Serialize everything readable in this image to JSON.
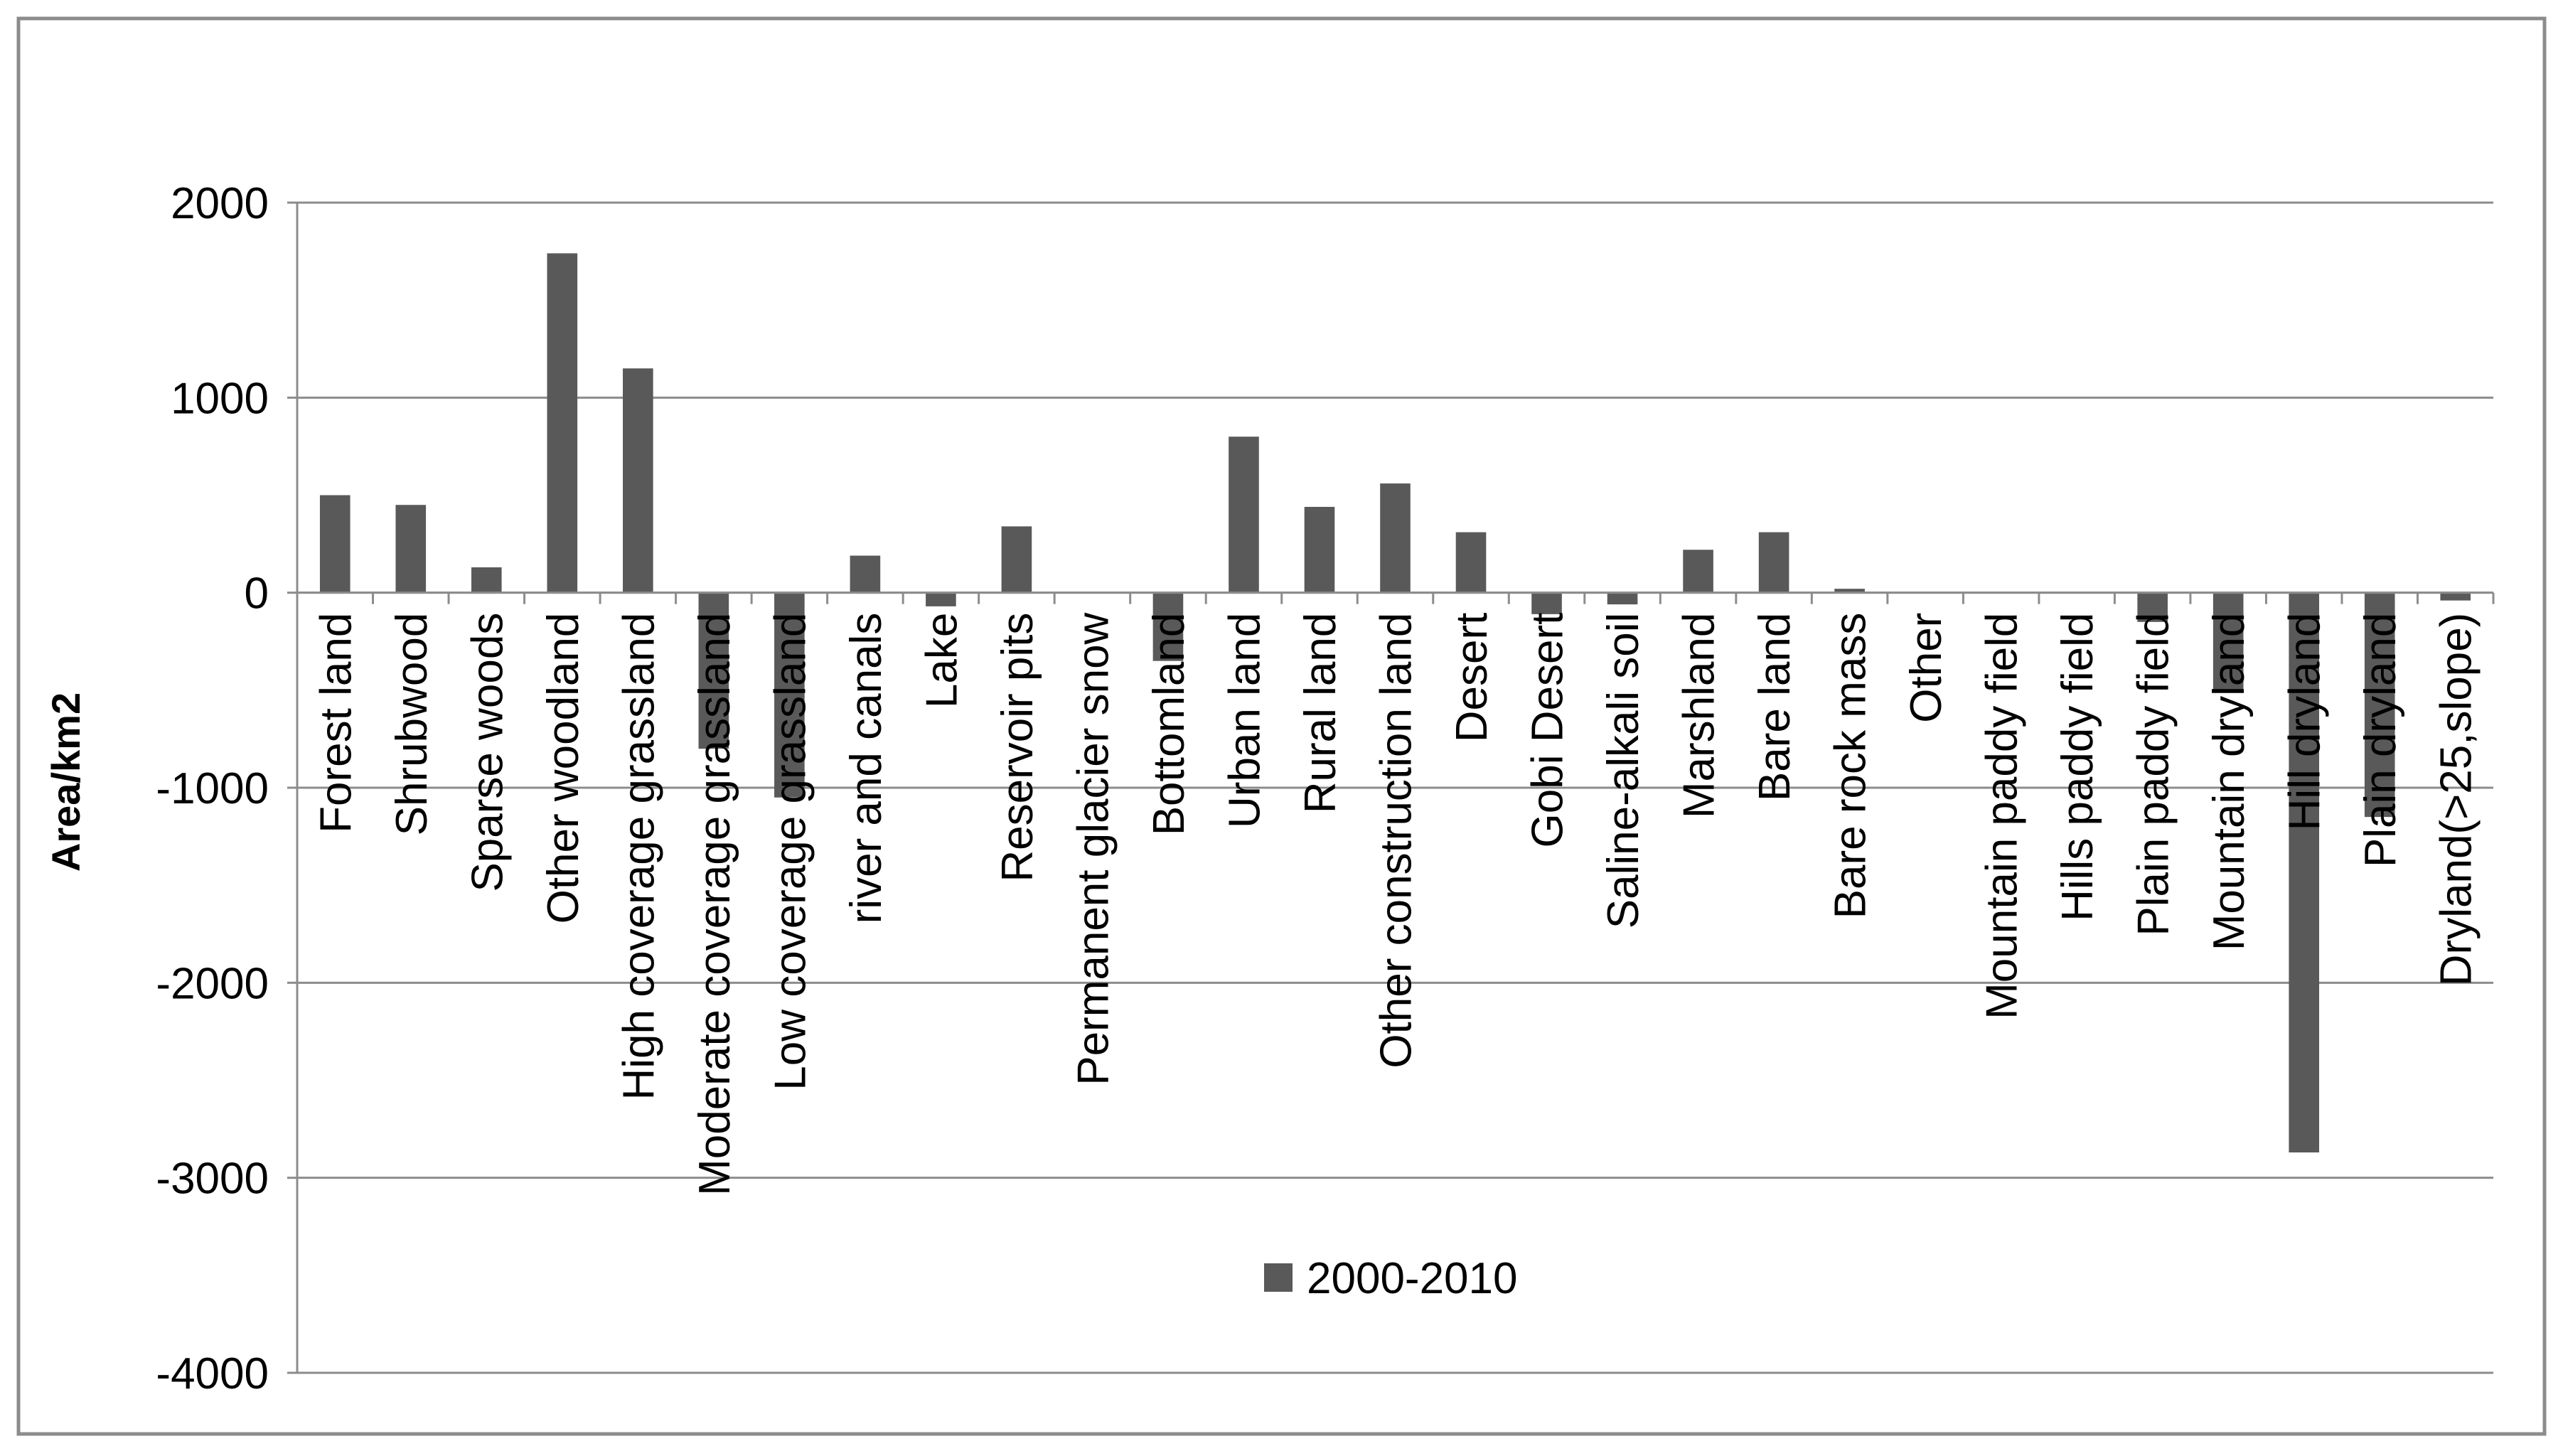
{
  "chart_data": {
    "type": "bar",
    "title": "",
    "xlabel": "",
    "ylabel": "Area/km2",
    "ylim": [
      -4000,
      2000
    ],
    "yticks": [
      2000,
      1000,
      0,
      -1000,
      -2000,
      -3000,
      -4000
    ],
    "grid": true,
    "legend_placement": "bottom-center",
    "categories": [
      "Forest land",
      "Shrubwood",
      "Sparse woods",
      "Other woodland",
      "High coverage grassland",
      "Moderate coverage grassland",
      "Low coverage grassland",
      "river and canals",
      "Lake",
      "Reservoir pits",
      "Permanent glacier snow",
      "Bottomland",
      "Urban land",
      "Rural land",
      "Other construction land",
      "Desert",
      "Gobi Desert",
      "Saline-alkali soil",
      "Marshland",
      "Bare land",
      "Bare rock mass",
      "Other",
      "Mountain paddy field",
      "Hills paddy field",
      "Plain paddy field",
      "Mountain dryland",
      "Hill dryland",
      "Plain dryland",
      "Dryland(>25,slope)"
    ],
    "series": [
      {
        "name": "2000-2010",
        "color": "#595959",
        "values": [
          500,
          450,
          130,
          1740,
          1150,
          -800,
          -1050,
          190,
          -70,
          340,
          0,
          -350,
          800,
          440,
          560,
          310,
          -110,
          -60,
          220,
          310,
          20,
          0,
          0,
          0,
          -150,
          -500,
          -2870,
          -1150,
          -40
        ]
      }
    ]
  }
}
